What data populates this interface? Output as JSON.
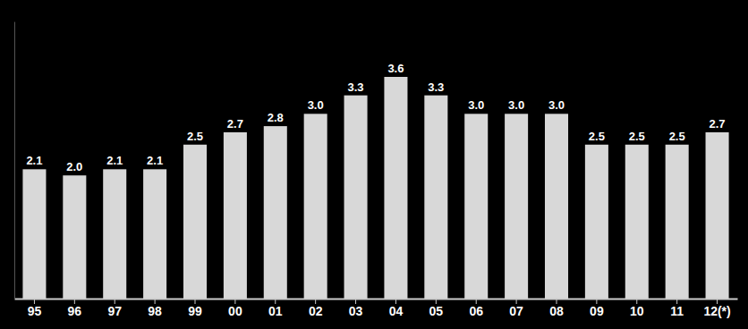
{
  "chart_data": {
    "type": "bar",
    "categories": [
      "95",
      "96",
      "97",
      "98",
      "99",
      "00",
      "01",
      "02",
      "03",
      "04",
      "05",
      "06",
      "07",
      "08",
      "09",
      "10",
      "11",
      "12(*)"
    ],
    "values": [
      2.1,
      2.0,
      2.1,
      2.1,
      2.5,
      2.7,
      2.8,
      3.0,
      3.3,
      3.6,
      3.3,
      3.0,
      3.0,
      3.0,
      2.5,
      2.5,
      2.5,
      2.7
    ],
    "value_labels": [
      "2.1",
      "2.0",
      "2.1",
      "2.1",
      "2.5",
      "2.7",
      "2.8",
      "3.0",
      "3.3",
      "3.6",
      "3.3",
      "3.0",
      "3.0",
      "3.0",
      "2.5",
      "2.5",
      "2.5",
      "2.7"
    ],
    "color": "#d8d8d8",
    "ylim": [
      0,
      4.5
    ],
    "data_labels": true,
    "tick_labels": "x",
    "grid": false
  }
}
